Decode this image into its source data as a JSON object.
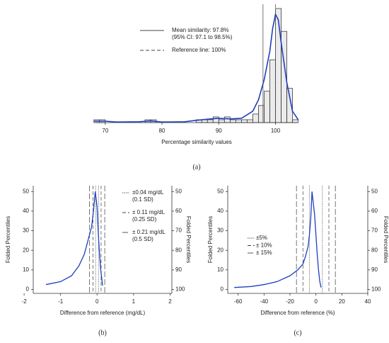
{
  "chart_data": [
    {
      "type": "histogram",
      "caption": "(a)",
      "xlabel": "Percentage similarity values",
      "xlim": [
        68.4,
        103.8
      ],
      "xticks": [
        70,
        80,
        90,
        100
      ],
      "bins": [
        68,
        69,
        70,
        71,
        72,
        73,
        74,
        75,
        76,
        77,
        78,
        79,
        80,
        81,
        82,
        83,
        84,
        85,
        86,
        87,
        88,
        89,
        90,
        91,
        92,
        93,
        94,
        95,
        96,
        97,
        98,
        99,
        100,
        101,
        102,
        103,
        104
      ],
      "counts": [
        1,
        1,
        0,
        0,
        0,
        0,
        0,
        0,
        0,
        1,
        1,
        0,
        0,
        0,
        0,
        0,
        0,
        0,
        1,
        1,
        1,
        2,
        1,
        2,
        1,
        1,
        1,
        1,
        3,
        6,
        11,
        22,
        40,
        32,
        12,
        1
      ],
      "bar_color": "#ebebeb",
      "curve": {
        "color": "#1f3fbf",
        "x": [
          68,
          70,
          72,
          76,
          78,
          80,
          84,
          86,
          88,
          90,
          92,
          94,
          96,
          97,
          98,
          99,
          99.5,
          100,
          100.5,
          101,
          102,
          103,
          104
        ],
        "values": [
          0.5,
          0.5,
          0.2,
          0.3,
          0.6,
          0.2,
          0.3,
          0.8,
          1.2,
          1.5,
          1.3,
          1.5,
          4,
          8,
          15,
          25,
          33,
          38,
          36,
          28,
          14,
          4,
          1
        ]
      },
      "lines": [
        {
          "value": 97.8,
          "style": "solid",
          "labels": [
            "Mean similarity: 97.8%",
            "(95% CI: 97.1 to 98.5%)"
          ]
        },
        {
          "value": 100,
          "style": "dashed",
          "labels": [
            "Reference line: 100%"
          ]
        }
      ]
    },
    {
      "type": "line",
      "caption": "(b)",
      "xlabel": "Difference from reference (mg/dL)",
      "ylabel": "Folded Percentiles",
      "y2label": "Folded Percentiles",
      "xlim": [
        -1.75,
        2.05
      ],
      "xticks": [
        -2,
        -1,
        0,
        1,
        2
      ],
      "ylim": [
        -2,
        53
      ],
      "yticks": [
        0,
        10,
        20,
        30,
        40,
        50
      ],
      "y2lim": [
        102,
        47
      ],
      "y2ticks": [
        100,
        90,
        80,
        70,
        60,
        50
      ],
      "color": "#1f3fbf",
      "x": [
        -1.4,
        -1.0,
        -0.7,
        -0.5,
        -0.35,
        -0.25,
        -0.15,
        -0.1,
        -0.05,
        0,
        0.03,
        0.06,
        0.1,
        0.15
      ],
      "values": [
        2.5,
        4,
        7,
        12,
        18,
        25,
        32,
        40,
        50,
        42,
        30,
        20,
        10,
        2
      ],
      "lines": [
        {
          "value": 0.04,
          "style": "dotted",
          "labels": [
            "±0.04 mg/dL",
            "(0.1 SD)"
          ]
        },
        {
          "value": 0.11,
          "style": "dashed",
          "labels": [
            "± 0.11 mg/dL",
            "(0.25 SD)"
          ]
        },
        {
          "value": 0.21,
          "style": "longdash",
          "labels": [
            "± 0.21 mg/dL",
            "(0.5 SD)"
          ]
        }
      ]
    },
    {
      "type": "line",
      "caption": "(c)",
      "xlabel": "Difference from reference (%)",
      "ylabel": "Folded Percentiles",
      "y2label": "Folded Percentiles",
      "xlim": [
        -68,
        40
      ],
      "xticks": [
        -60,
        -40,
        -20,
        0,
        20,
        40
      ],
      "ylim": [
        -2,
        53
      ],
      "yticks": [
        0,
        10,
        20,
        30,
        40,
        50
      ],
      "y2lim": [
        102,
        47
      ],
      "y2ticks": [
        100,
        90,
        80,
        70,
        60,
        50
      ],
      "color": "#1f3fbf",
      "x": [
        -63,
        -50,
        -40,
        -30,
        -20,
        -14,
        -10,
        -8,
        -6,
        -5,
        -4,
        -3,
        -1,
        0,
        1,
        2,
        3,
        4
      ],
      "values": [
        1,
        1.5,
        2.5,
        4,
        7,
        10,
        13,
        17,
        22,
        28,
        36,
        50,
        38,
        28,
        18,
        10,
        4,
        1
      ],
      "lines": [
        {
          "value": 5,
          "style": "dotted",
          "labels": [
            "±5%"
          ]
        },
        {
          "value": 10,
          "style": "dashed",
          "labels": [
            "± 10%"
          ]
        },
        {
          "value": 15,
          "style": "longdash",
          "labels": [
            "± 15%"
          ]
        }
      ]
    }
  ]
}
